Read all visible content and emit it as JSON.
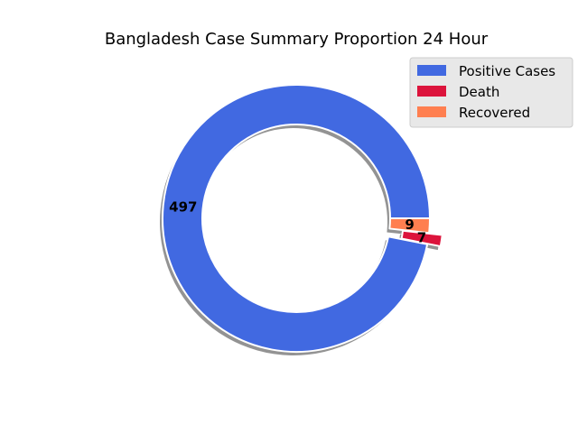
{
  "chart_data": {
    "type": "pie",
    "title": "Bangladesh Case Summary Proportion 24 Hour",
    "donut": true,
    "shadow": true,
    "labels": [
      "Positive Cases",
      "Death",
      "Recovered"
    ],
    "values": [
      497,
      7,
      9
    ],
    "value_labels": [
      "497",
      "7",
      "9"
    ],
    "explode": [
      0,
      1,
      0
    ],
    "colors": [
      "#4169e1",
      "#dc143c",
      "#ff7f50"
    ],
    "legend_position": "top-right"
  }
}
